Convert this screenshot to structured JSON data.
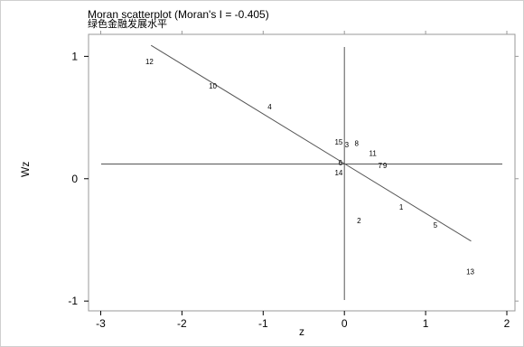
{
  "chart_data": {
    "type": "scatter",
    "title": "Moran scatterplot (Moran's I = -0.405)",
    "subtitle": "绿色金融发展水平",
    "xlabel": "z",
    "ylabel": "Wz",
    "xlim": [
      -3.15,
      2.1
    ],
    "ylim": [
      -1.08,
      1.18
    ],
    "xticks": [
      "-3",
      "-2",
      "-1",
      "0",
      "1",
      "2"
    ],
    "yticks": [
      "1",
      "0",
      "-1"
    ],
    "xtick_values": [
      -3,
      -2,
      -1,
      0,
      1,
      2
    ],
    "ytick_values": [
      1,
      0,
      -1
    ],
    "points": [
      {
        "label": "12",
        "x": -2.4,
        "y": 0.96
      },
      {
        "label": "10",
        "x": -1.62,
        "y": 0.76
      },
      {
        "label": "4",
        "x": -0.92,
        "y": 0.59
      },
      {
        "label": "15",
        "x": -0.07,
        "y": 0.3
      },
      {
        "label": "3",
        "x": 0.03,
        "y": 0.28
      },
      {
        "label": "8",
        "x": 0.15,
        "y": 0.29
      },
      {
        "label": "11",
        "x": 0.35,
        "y": 0.21
      },
      {
        "label": "6",
        "x": -0.05,
        "y": 0.13
      },
      {
        "label": "7",
        "x": 0.44,
        "y": 0.11
      },
      {
        "label": "9",
        "x": 0.5,
        "y": 0.11
      },
      {
        "label": "14",
        "x": -0.07,
        "y": 0.05
      },
      {
        "label": "2",
        "x": 0.18,
        "y": -0.34
      },
      {
        "label": "1",
        "x": 0.7,
        "y": -0.23
      },
      {
        "label": "5",
        "x": 1.12,
        "y": -0.38
      },
      {
        "label": "13",
        "x": 1.55,
        "y": -0.76
      }
    ],
    "mean_lines": {
      "x": 0,
      "y": 0.12
    },
    "regression": {
      "x1": -2.38,
      "y1": 1.09,
      "x2": 1.56,
      "y2": -0.51
    },
    "colors": {
      "line": "#555555",
      "text": "#000000",
      "frame": "#999999"
    }
  }
}
